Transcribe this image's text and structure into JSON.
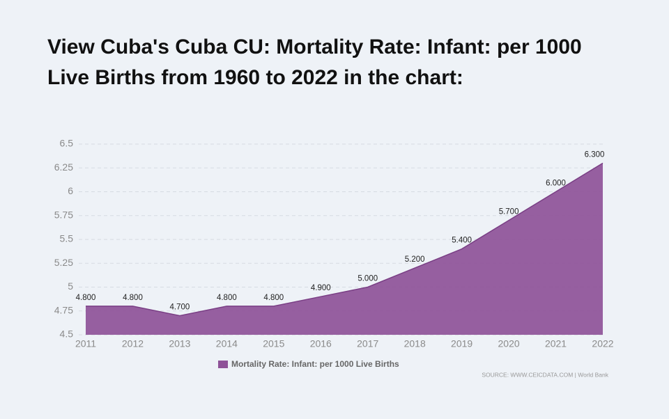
{
  "chart_data": {
    "type": "area",
    "title": "View Cuba's Cuba CU: Mortality Rate: Infant: per 1000 Live Births from 1960 to 2022 in the chart:",
    "categories": [
      "2011",
      "2012",
      "2013",
      "2014",
      "2015",
      "2016",
      "2017",
      "2018",
      "2019",
      "2020",
      "2021",
      "2022"
    ],
    "series": [
      {
        "name": "Mortality Rate: Infant: per 1000 Live Births",
        "color": "#8e5298",
        "values": [
          4.8,
          4.8,
          4.7,
          4.8,
          4.8,
          4.9,
          5.0,
          5.2,
          5.4,
          5.7,
          6.0,
          6.3
        ],
        "value_labels": [
          "4.800",
          "4.800",
          "4.700",
          "4.800",
          "4.800",
          "4.900",
          "5.000",
          "5.200",
          "5.400",
          "5.700",
          "6.000",
          "6.300"
        ]
      }
    ],
    "ylim": [
      4.5,
      6.5
    ],
    "yticks": [
      4.5,
      4.75,
      5,
      5.25,
      5.5,
      5.75,
      6,
      6.25,
      6.5
    ],
    "grid": true,
    "source": "SOURCE: WWW.CEICDATA.COM | World Bank"
  }
}
